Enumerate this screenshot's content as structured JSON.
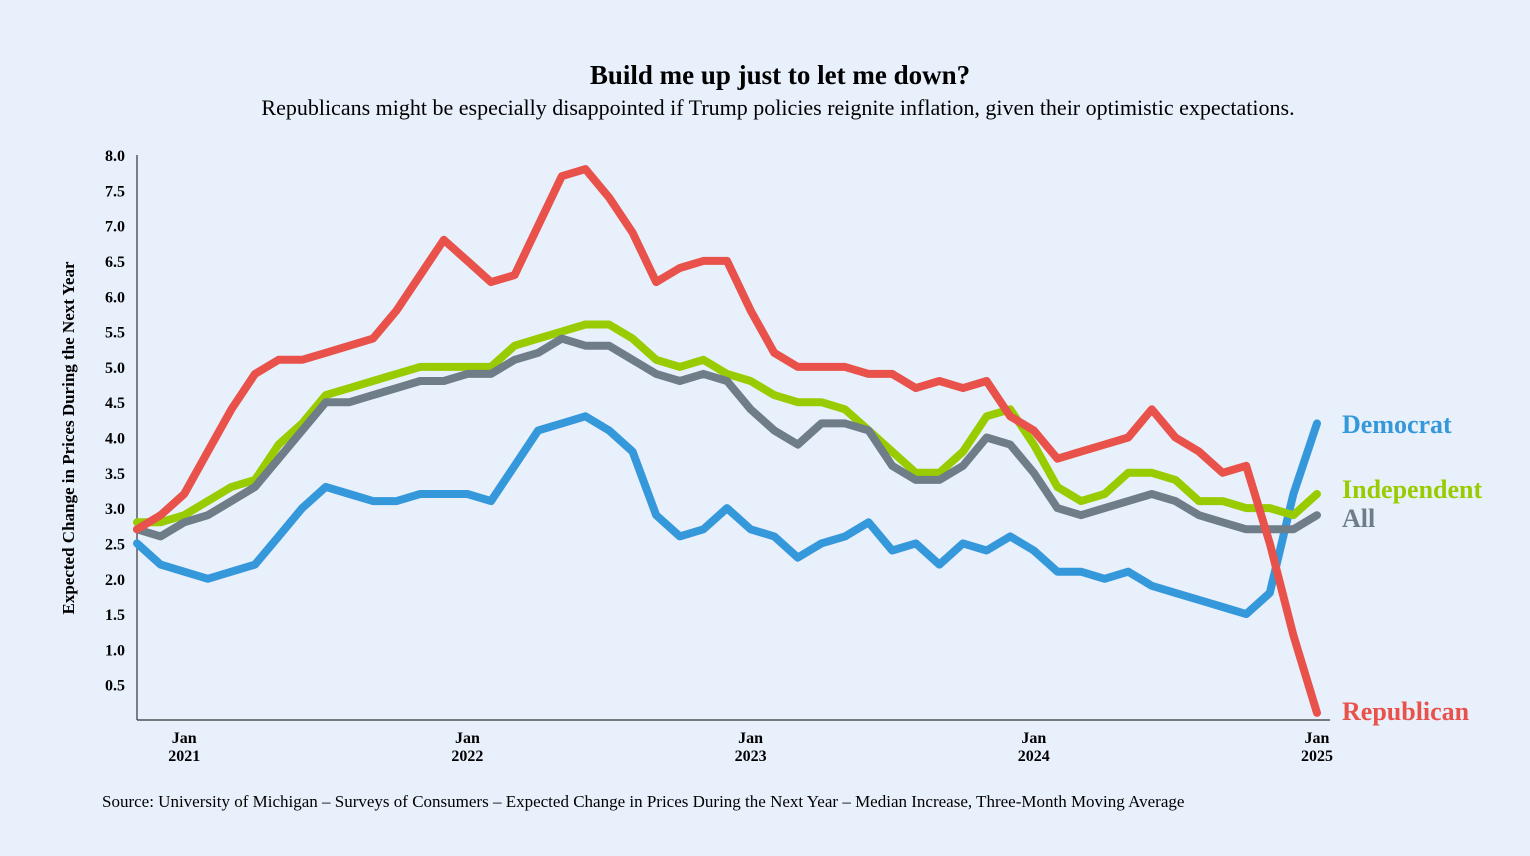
{
  "chart_data": {
    "type": "line",
    "title": "Build me up just to let me down?",
    "subtitle": "Republicans might be especially disappointed if Trump policies reignite inflation, given their optimistic expectations.",
    "ylabel": "Expected Change in Prices During the Next Year",
    "xlabel": "",
    "source": "Source: University of Michigan – Surveys of Consumers – Expected Change in Prices During the Next Year – Median Increase, Three-Month Moving Average",
    "ylim": [
      0,
      8.0
    ],
    "yticks": [
      "0.5",
      "1.0",
      "1.5",
      "2.0",
      "2.5",
      "3.0",
      "3.5",
      "4.0",
      "4.5",
      "5.0",
      "5.5",
      "6.0",
      "6.5",
      "7.0",
      "7.5",
      "8.0"
    ],
    "xticks": [
      {
        "month": "Jan",
        "year": "2021",
        "index": 2
      },
      {
        "month": "Jan",
        "year": "2022",
        "index": 14
      },
      {
        "month": "Jan",
        "year": "2023",
        "index": 26
      },
      {
        "month": "Jan",
        "year": "2024",
        "index": 38
      },
      {
        "month": "Jan",
        "year": "2025",
        "index": 50
      }
    ],
    "x": [
      "2020-11",
      "2020-12",
      "2021-01",
      "2021-02",
      "2021-03",
      "2021-04",
      "2021-05",
      "2021-06",
      "2021-07",
      "2021-08",
      "2021-09",
      "2021-10",
      "2021-11",
      "2021-12",
      "2022-01",
      "2022-02",
      "2022-03",
      "2022-04",
      "2022-05",
      "2022-06",
      "2022-07",
      "2022-08",
      "2022-09",
      "2022-10",
      "2022-11",
      "2022-12",
      "2023-01",
      "2023-02",
      "2023-03",
      "2023-04",
      "2023-05",
      "2023-06",
      "2023-07",
      "2023-08",
      "2023-09",
      "2023-10",
      "2023-11",
      "2023-12",
      "2024-01",
      "2024-02",
      "2024-03",
      "2024-04",
      "2024-05",
      "2024-06",
      "2024-07",
      "2024-08",
      "2024-09",
      "2024-10",
      "2024-11",
      "2024-12",
      "2025-01"
    ],
    "grid": false,
    "legend": "direct labels at right end of lines",
    "series": [
      {
        "name": "Democrat",
        "color": "#3498db",
        "values": [
          2.5,
          2.2,
          2.1,
          2.0,
          2.1,
          2.2,
          2.6,
          3.0,
          3.3,
          3.2,
          3.1,
          3.1,
          3.2,
          3.2,
          3.2,
          3.1,
          3.6,
          4.1,
          4.2,
          4.3,
          4.1,
          3.8,
          2.9,
          2.6,
          2.7,
          3.0,
          2.7,
          2.6,
          2.3,
          2.5,
          2.6,
          2.8,
          2.4,
          2.5,
          2.2,
          2.5,
          2.4,
          2.6,
          2.4,
          2.1,
          2.1,
          2.0,
          2.1,
          1.9,
          1.8,
          1.7,
          1.6,
          1.5,
          1.8,
          3.2,
          4.2
        ]
      },
      {
        "name": "Independent",
        "color": "#99cc00",
        "values": [
          2.8,
          2.8,
          2.9,
          3.1,
          3.3,
          3.4,
          3.9,
          4.2,
          4.6,
          4.7,
          4.8,
          4.9,
          5.0,
          5.0,
          5.0,
          5.0,
          5.3,
          5.4,
          5.5,
          5.6,
          5.6,
          5.4,
          5.1,
          5.0,
          5.1,
          4.9,
          4.8,
          4.6,
          4.5,
          4.5,
          4.4,
          4.1,
          3.8,
          3.5,
          3.5,
          3.8,
          4.3,
          4.4,
          3.9,
          3.3,
          3.1,
          3.2,
          3.5,
          3.5,
          3.4,
          3.1,
          3.1,
          3.0,
          3.0,
          2.9,
          3.2
        ]
      },
      {
        "name": "All",
        "color": "#6f7d88",
        "values": [
          2.7,
          2.6,
          2.8,
          2.9,
          3.1,
          3.3,
          3.7,
          4.1,
          4.5,
          4.5,
          4.6,
          4.7,
          4.8,
          4.8,
          4.9,
          4.9,
          5.1,
          5.2,
          5.4,
          5.3,
          5.3,
          5.1,
          4.9,
          4.8,
          4.9,
          4.8,
          4.4,
          4.1,
          3.9,
          4.2,
          4.2,
          4.1,
          3.6,
          3.4,
          3.4,
          3.6,
          4.0,
          3.9,
          3.5,
          3.0,
          2.9,
          3.0,
          3.1,
          3.2,
          3.1,
          2.9,
          2.8,
          2.7,
          2.7,
          2.7,
          2.9
        ]
      },
      {
        "name": "Republican",
        "color": "#e8524a",
        "values": [
          2.7,
          2.9,
          3.2,
          3.8,
          4.4,
          4.9,
          5.1,
          5.1,
          5.2,
          5.3,
          5.4,
          5.8,
          6.3,
          6.8,
          6.5,
          6.2,
          6.3,
          7.0,
          7.7,
          7.8,
          7.4,
          6.9,
          6.2,
          6.4,
          6.5,
          6.5,
          5.8,
          5.2,
          5.0,
          5.0,
          5.0,
          4.9,
          4.9,
          4.7,
          4.8,
          4.7,
          4.8,
          4.3,
          4.1,
          3.7,
          3.8,
          3.9,
          4.0,
          4.4,
          4.0,
          3.8,
          3.5,
          3.6,
          2.5,
          1.2,
          0.1
        ]
      }
    ]
  }
}
